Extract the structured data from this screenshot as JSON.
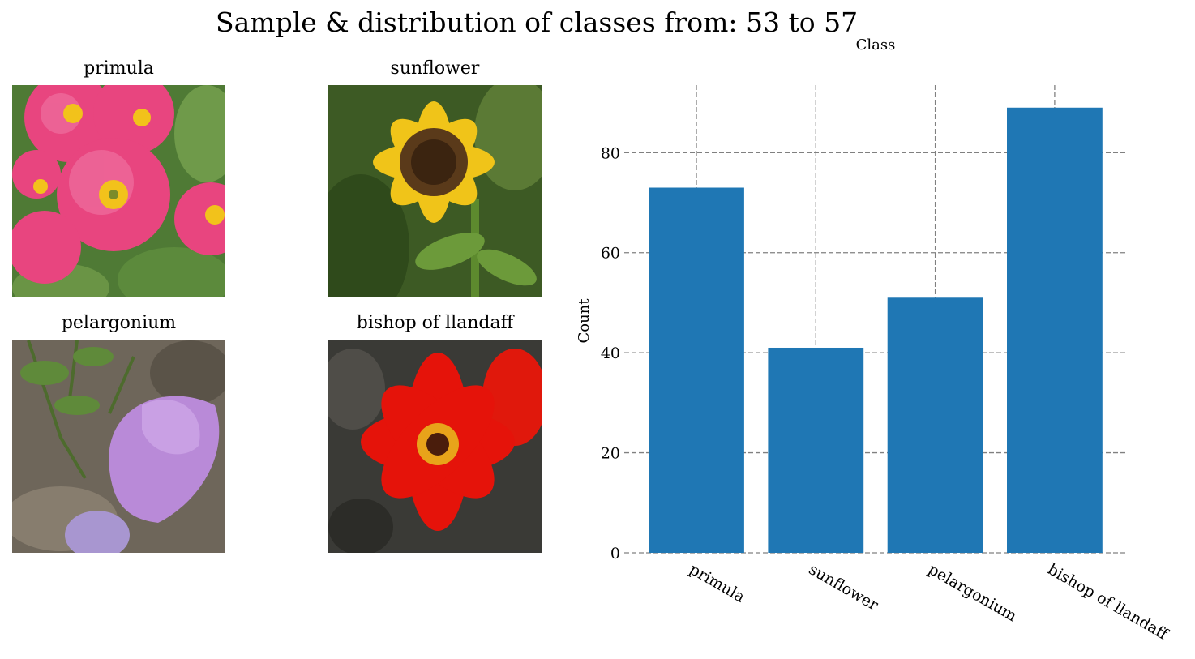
{
  "suptitle": "Sample & distribution of classes from: 53 to 57",
  "samples": [
    {
      "title": "primula",
      "icon": "pink-primula-flower-photo"
    },
    {
      "title": "sunflower",
      "icon": "yellow-sunflower-photo"
    },
    {
      "title": "pelargonium",
      "icon": "purple-pelargonium-flower-photo"
    },
    {
      "title": "bishop of llandaff",
      "icon": "red-dahlia-flower-photo"
    }
  ],
  "chart_data": {
    "type": "bar",
    "title": "Class",
    "xlabel": "",
    "ylabel": "Count",
    "categories": [
      "primula",
      "sunflower",
      "pelargonium",
      "bishop of llandaff"
    ],
    "values": [
      73,
      41,
      51,
      89
    ],
    "yticks": [
      0,
      20,
      40,
      60,
      80
    ],
    "ylim": [
      0,
      93.5
    ],
    "grid": true,
    "bar_color": "#1f77b4",
    "grid_color": "#808080"
  }
}
